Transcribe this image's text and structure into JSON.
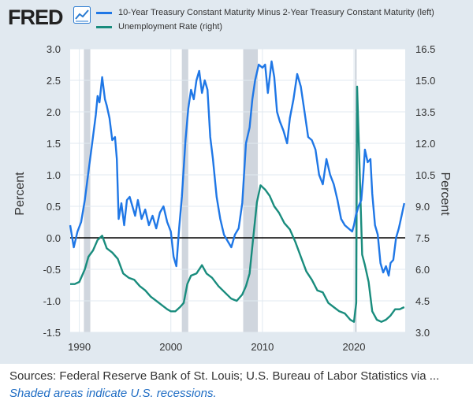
{
  "header": {
    "logo_text": "FRED",
    "logo_icon": "line-chart-icon"
  },
  "colors": {
    "series1": "#1f77e6",
    "series2": "#198c7d",
    "recession": "#d0d6de",
    "plot_bg": "#ffffff",
    "frame_bg": "#e1e9f0",
    "grid": "#e1e9f0",
    "zero_line": "#000000"
  },
  "footer": {
    "source": "Sources: Federal Reserve Bank of St. Louis; U.S. Bureau of Labor Statistics via ...",
    "note": "Shaded areas indicate U.S. recessions."
  },
  "chart_data": {
    "type": "line",
    "xlim": [
      1989.0,
      2025.6
    ],
    "xticks": [
      1990,
      2000,
      2010,
      2020
    ],
    "left_axis": {
      "label": "Percent",
      "ylim": [
        -1.5,
        3.0
      ],
      "ticks": [
        "3.0",
        "2.5",
        "2.0",
        "1.5",
        "1.0",
        "0.5",
        "0.0",
        "-0.5",
        "-1.0",
        "-1.5"
      ]
    },
    "right_axis": {
      "label": "Percent",
      "ylim": [
        3.0,
        16.5
      ],
      "ticks": [
        "16.5",
        "15.0",
        "13.5",
        "12.0",
        "10.5",
        "9.0",
        "7.5",
        "6.0",
        "4.5",
        "3.0"
      ]
    },
    "zero_line": 0.0,
    "recessions": [
      [
        1990.5,
        1991.2
      ],
      [
        2001.2,
        2001.9
      ],
      [
        2007.9,
        2009.5
      ],
      [
        2020.1,
        2020.3
      ]
    ],
    "series": [
      {
        "name": "10-Year Treasury Constant Maturity Minus 2-Year Treasury Constant Maturity (left)",
        "axis": "left",
        "x": [
          1989.0,
          1989.4,
          1989.8,
          1990.2,
          1990.6,
          1991.0,
          1991.4,
          1991.8,
          1992.0,
          1992.2,
          1992.5,
          1992.8,
          1993.0,
          1993.3,
          1993.6,
          1993.9,
          1994.1,
          1994.3,
          1994.6,
          1994.9,
          1995.2,
          1995.5,
          1995.8,
          1996.1,
          1996.4,
          1996.8,
          1997.2,
          1997.6,
          1998.0,
          1998.4,
          1998.8,
          1999.2,
          1999.6,
          2000.0,
          2000.3,
          2000.6,
          2000.9,
          2001.2,
          2001.6,
          2001.9,
          2002.2,
          2002.5,
          2002.8,
          2003.1,
          2003.4,
          2003.7,
          2004.0,
          2004.3,
          2004.6,
          2005.0,
          2005.4,
          2005.8,
          2006.2,
          2006.6,
          2007.0,
          2007.4,
          2007.8,
          2008.2,
          2008.6,
          2008.9,
          2009.2,
          2009.6,
          2010.0,
          2010.3,
          2010.6,
          2011.0,
          2011.3,
          2011.6,
          2011.9,
          2012.3,
          2012.7,
          2013.0,
          2013.4,
          2013.8,
          2014.2,
          2014.6,
          2015.0,
          2015.4,
          2015.8,
          2016.2,
          2016.6,
          2017.0,
          2017.4,
          2017.8,
          2018.2,
          2018.6,
          2019.0,
          2019.4,
          2019.8,
          2020.0,
          2020.2,
          2020.5,
          2020.8,
          2021.0,
          2021.2,
          2021.5,
          2021.8,
          2022.0,
          2022.3,
          2022.6,
          2022.9,
          2023.2,
          2023.5,
          2023.8,
          2024.0,
          2024.3,
          2024.6,
          2024.9,
          2025.2,
          2025.5
        ],
        "y": [
          0.2,
          -0.15,
          0.1,
          0.25,
          0.6,
          1.05,
          1.5,
          1.95,
          2.25,
          2.15,
          2.55,
          2.2,
          2.1,
          1.9,
          1.55,
          1.6,
          1.25,
          0.3,
          0.55,
          0.2,
          0.6,
          0.65,
          0.5,
          0.35,
          0.6,
          0.3,
          0.45,
          0.2,
          0.35,
          0.15,
          0.4,
          0.5,
          0.25,
          0.1,
          -0.3,
          -0.45,
          0.15,
          0.65,
          1.55,
          2.05,
          2.35,
          2.2,
          2.5,
          2.65,
          2.3,
          2.5,
          2.35,
          1.6,
          1.25,
          0.65,
          0.3,
          0.05,
          -0.05,
          -0.15,
          0.05,
          0.15,
          0.55,
          1.5,
          1.75,
          2.2,
          2.5,
          2.75,
          2.7,
          2.75,
          2.3,
          2.8,
          2.55,
          2.0,
          1.85,
          1.7,
          1.5,
          1.9,
          2.2,
          2.6,
          2.4,
          2.0,
          1.6,
          1.55,
          1.4,
          1.0,
          0.85,
          1.25,
          1.0,
          0.85,
          0.6,
          0.3,
          0.2,
          0.15,
          0.1,
          0.2,
          0.35,
          0.5,
          0.6,
          0.95,
          1.4,
          1.2,
          1.25,
          0.7,
          0.2,
          0.05,
          -0.4,
          -0.55,
          -0.45,
          -0.6,
          -0.4,
          -0.35,
          0.0,
          0.15,
          0.35,
          0.55
        ]
      },
      {
        "name": "Unemployment Rate (right)",
        "axis": "right",
        "x": [
          1989.0,
          1989.5,
          1990.0,
          1990.6,
          1991.0,
          1991.5,
          1992.0,
          1992.5,
          1993.0,
          1993.6,
          1994.2,
          1994.8,
          1995.4,
          1996.0,
          1996.6,
          1997.2,
          1997.8,
          1998.4,
          1999.0,
          1999.6,
          2000.0,
          2000.5,
          2001.0,
          2001.4,
          2001.8,
          2002.2,
          2002.8,
          2003.4,
          2003.9,
          2004.5,
          2005.2,
          2005.9,
          2006.6,
          2007.2,
          2007.8,
          2008.2,
          2008.6,
          2009.0,
          2009.4,
          2009.8,
          2010.3,
          2010.8,
          2011.3,
          2011.8,
          2012.4,
          2013.0,
          2013.6,
          2014.2,
          2014.8,
          2015.4,
          2016.0,
          2016.6,
          2017.2,
          2017.8,
          2018.4,
          2019.0,
          2019.6,
          2020.0,
          2020.25,
          2020.35,
          2020.6,
          2020.9,
          2021.2,
          2021.6,
          2022.0,
          2022.5,
          2023.0,
          2023.5,
          2024.0,
          2024.5,
          2025.0,
          2025.5
        ],
        "y": [
          5.3,
          5.3,
          5.4,
          6.0,
          6.6,
          6.9,
          7.4,
          7.6,
          7.0,
          6.8,
          6.5,
          5.8,
          5.6,
          5.5,
          5.2,
          5.0,
          4.7,
          4.5,
          4.3,
          4.1,
          4.0,
          4.0,
          4.2,
          4.4,
          5.3,
          5.7,
          5.8,
          6.2,
          5.8,
          5.6,
          5.2,
          4.9,
          4.6,
          4.5,
          4.8,
          5.2,
          5.8,
          7.5,
          9.2,
          10.0,
          9.8,
          9.5,
          9.0,
          8.7,
          8.2,
          7.9,
          7.3,
          6.6,
          5.9,
          5.5,
          5.0,
          4.9,
          4.4,
          4.2,
          4.0,
          3.9,
          3.6,
          3.5,
          4.4,
          14.7,
          11.1,
          6.7,
          6.2,
          5.4,
          4.0,
          3.6,
          3.5,
          3.6,
          3.8,
          4.1,
          4.1,
          4.2
        ]
      }
    ]
  }
}
